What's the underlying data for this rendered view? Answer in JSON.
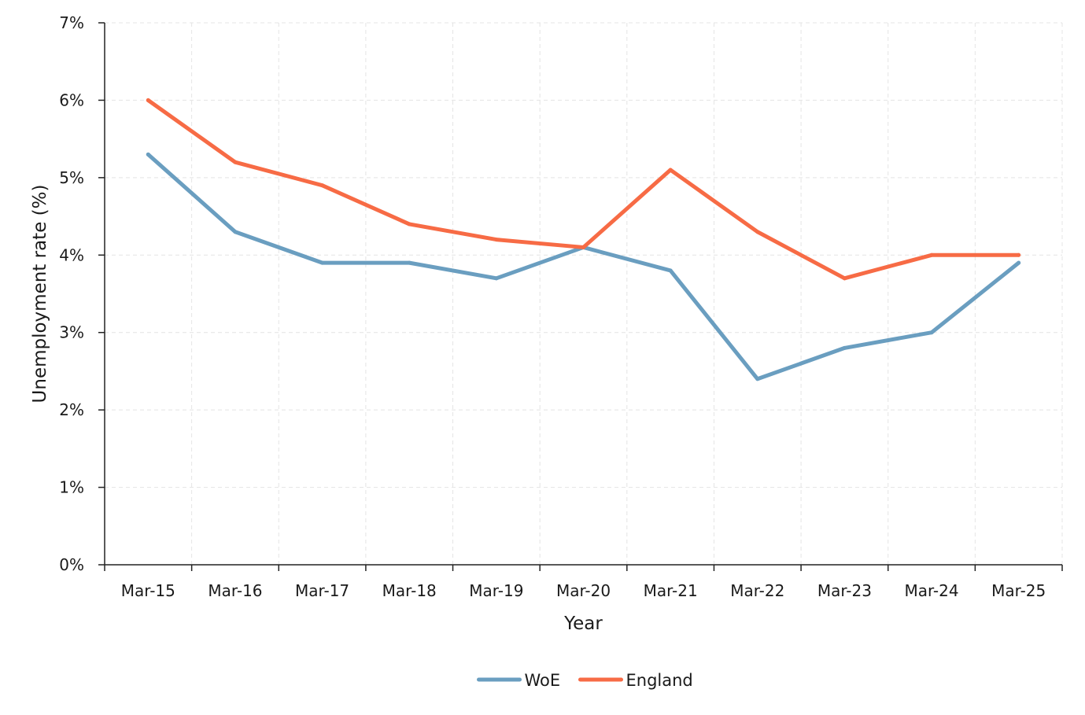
{
  "chart_data": {
    "type": "line",
    "title": "",
    "xlabel": "Year",
    "ylabel": "Unemployment rate (%)",
    "categories": [
      "Mar-15",
      "Mar-16",
      "Mar-17",
      "Mar-18",
      "Mar-19",
      "Mar-20",
      "Mar-21",
      "Mar-22",
      "Mar-23",
      "Mar-24",
      "Mar-25"
    ],
    "ylim": [
      0,
      7
    ],
    "yticks": [
      0,
      1,
      2,
      3,
      4,
      5,
      6,
      7
    ],
    "ytick_labels": [
      "0%",
      "1%",
      "2%",
      "3%",
      "4%",
      "5%",
      "6%",
      "7%"
    ],
    "series": [
      {
        "name": "WoE",
        "color": "#6A9EC0",
        "values": [
          5.3,
          4.3,
          3.9,
          3.9,
          3.7,
          4.1,
          3.8,
          2.4,
          2.8,
          3.0,
          3.9
        ]
      },
      {
        "name": "England",
        "color": "#F76B45",
        "values": [
          6.0,
          5.2,
          4.9,
          4.4,
          4.2,
          4.1,
          5.1,
          4.3,
          3.7,
          4.0,
          4.0
        ]
      }
    ],
    "grid": true,
    "grid_style": "dashed light grey",
    "legend_placement": "bottom-center"
  }
}
